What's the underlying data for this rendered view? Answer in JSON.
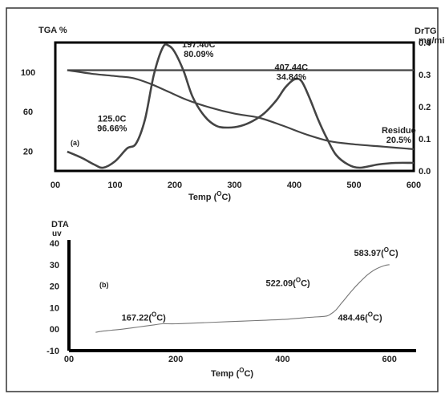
{
  "chart_data": [
    {
      "type": "line",
      "panel_label": "(a)",
      "xlabel": "Temp (",
      "xlabel_sup": "O",
      "xlabel_end": "C)",
      "ylabel_left": "TGA %",
      "ylabel_right_1": "DrTG",
      "ylabel_right_2": "mg/min",
      "xlim": [
        0,
        600
      ],
      "ylim_left": [
        0,
        130
      ],
      "ylim_right": [
        0,
        0.4
      ],
      "x_ticks": [
        "00",
        "100",
        "200",
        "300",
        "400",
        "500",
        "600"
      ],
      "y_left_ticks": [
        "20",
        "60",
        "100"
      ],
      "y_right_ticks": [
        "0.0",
        "0.1",
        "0.2",
        "0.3",
        "0.4"
      ],
      "series": [
        {
          "axis": "left",
          "x": [
            20,
            60,
            100,
            130,
            160,
            190,
            220,
            260,
            300,
            340,
            380,
            420,
            460,
            500,
            550,
            600
          ],
          "y": [
            102,
            98.5,
            96,
            94,
            88,
            80,
            72,
            64,
            58,
            54,
            46,
            37,
            30,
            27,
            24.5,
            22
          ]
        },
        {
          "axis": "left",
          "x": [
            20,
            100,
            200,
            300,
            400,
            500,
            600
          ],
          "y": [
            102,
            102,
            102,
            102,
            102,
            102,
            102
          ]
        },
        {
          "axis": "right",
          "x": [
            20,
            45,
            65,
            80,
            100,
            120,
            135,
            150,
            165,
            180,
            190,
            200,
            215,
            230,
            250,
            270,
            290,
            310,
            330,
            350,
            370,
            385,
            400,
            412,
            425,
            440,
            455,
            470,
            490,
            510,
            540,
            570,
            600
          ],
          "y": [
            0.06,
            0.04,
            0.02,
            0.01,
            0.03,
            0.07,
            0.085,
            0.16,
            0.3,
            0.385,
            0.39,
            0.37,
            0.31,
            0.23,
            0.17,
            0.14,
            0.135,
            0.14,
            0.155,
            0.18,
            0.22,
            0.26,
            0.285,
            0.28,
            0.23,
            0.16,
            0.1,
            0.05,
            0.02,
            0.01,
            0.02,
            0.025,
            0.025
          ]
        }
      ],
      "annotations": [
        {
          "lines": [
            "197.40C",
            "80.09%"
          ],
          "x": 240,
          "y": 125
        },
        {
          "lines": [
            "407.44C",
            "34.84%"
          ],
          "x": 395,
          "y": 102
        },
        {
          "lines": [
            "125.0C",
            "96.66%"
          ],
          "x": 95,
          "y": 50
        },
        {
          "lines": [
            "Residue",
            "20.5%"
          ],
          "x": 575,
          "y": 38
        }
      ]
    },
    {
      "type": "line",
      "panel_label": "(b)",
      "ylabel_1": "DTA",
      "ylabel_2": "uv",
      "xlabel": "Temp (",
      "xlabel_sup": "O",
      "xlabel_end": "C)",
      "xlim": [
        0,
        650
      ],
      "ylim": [
        -10,
        40
      ],
      "x_ticks": [
        "00",
        "200",
        "400",
        "600"
      ],
      "y_ticks": [
        "-10",
        "00",
        "10",
        "20",
        "30",
        "40"
      ],
      "series": [
        {
          "x": [
            50,
            60,
            80,
            100,
            130,
            160,
            175,
            200,
            250,
            300,
            350,
            400,
            450,
            480,
            490,
            500,
            510,
            520,
            530,
            545,
            560,
            575,
            590,
            600
          ],
          "y": [
            -1.5,
            -1,
            -0.5,
            0,
            1,
            2,
            2.5,
            2.5,
            3,
            3.5,
            4,
            4.5,
            5.5,
            6,
            7,
            9,
            12,
            15,
            18,
            22,
            25.5,
            28,
            29.5,
            30
          ]
        }
      ],
      "annotations": [
        {
          "text": "167.22(",
          "sup": "O",
          "end": "C)",
          "x": 140,
          "y": 4
        },
        {
          "text": "522.09(",
          "sup": "O",
          "end": "C)",
          "x": 410,
          "y": 20
        },
        {
          "text": "583.97(",
          "sup": "O",
          "end": "C)",
          "x": 575,
          "y": 34
        },
        {
          "text": "484.46(",
          "sup": "O",
          "end": "C)",
          "x": 545,
          "y": 4
        }
      ]
    }
  ]
}
